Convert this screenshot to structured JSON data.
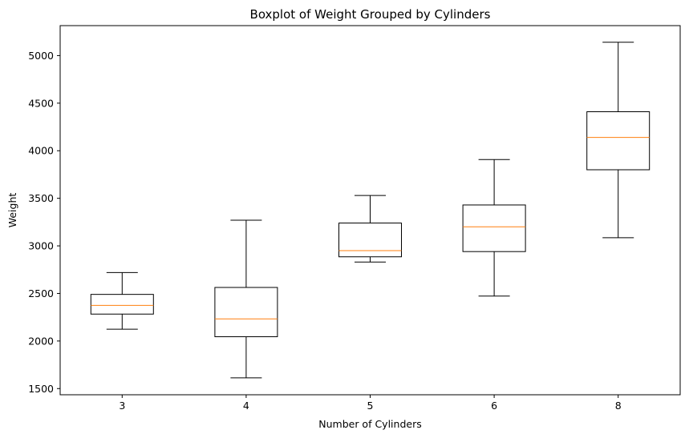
{
  "chart_data": {
    "type": "boxplot",
    "title": "Boxplot of Weight Grouped by Cylinders",
    "xlabel": "Number of Cylinders",
    "ylabel": "Weight",
    "categories": [
      "3",
      "4",
      "5",
      "6",
      "8"
    ],
    "boxes": [
      {
        "category": "3",
        "whisker_low": 2124,
        "q1": 2283,
        "median": 2375,
        "q3": 2490,
        "whisker_high": 2720
      },
      {
        "category": "4",
        "whisker_low": 1613,
        "q1": 2045,
        "median": 2232,
        "q3": 2563,
        "whisker_high": 3270
      },
      {
        "category": "5",
        "whisker_low": 2830,
        "q1": 2885,
        "median": 2950,
        "q3": 3240,
        "whisker_high": 3530
      },
      {
        "category": "6",
        "whisker_low": 2472,
        "q1": 2940,
        "median": 3200,
        "q3": 3430,
        "whisker_high": 3907
      },
      {
        "category": "8",
        "whisker_low": 3086,
        "q1": 3800,
        "median": 4140,
        "q3": 4410,
        "whisker_high": 5140
      }
    ],
    "yticks": [
      1500,
      2000,
      2500,
      3000,
      3500,
      4000,
      4500,
      5000
    ],
    "ylim": [
      1435,
      5315
    ],
    "grid": false,
    "colors": {
      "box": "#000000",
      "median": "#ff7f0e"
    }
  }
}
